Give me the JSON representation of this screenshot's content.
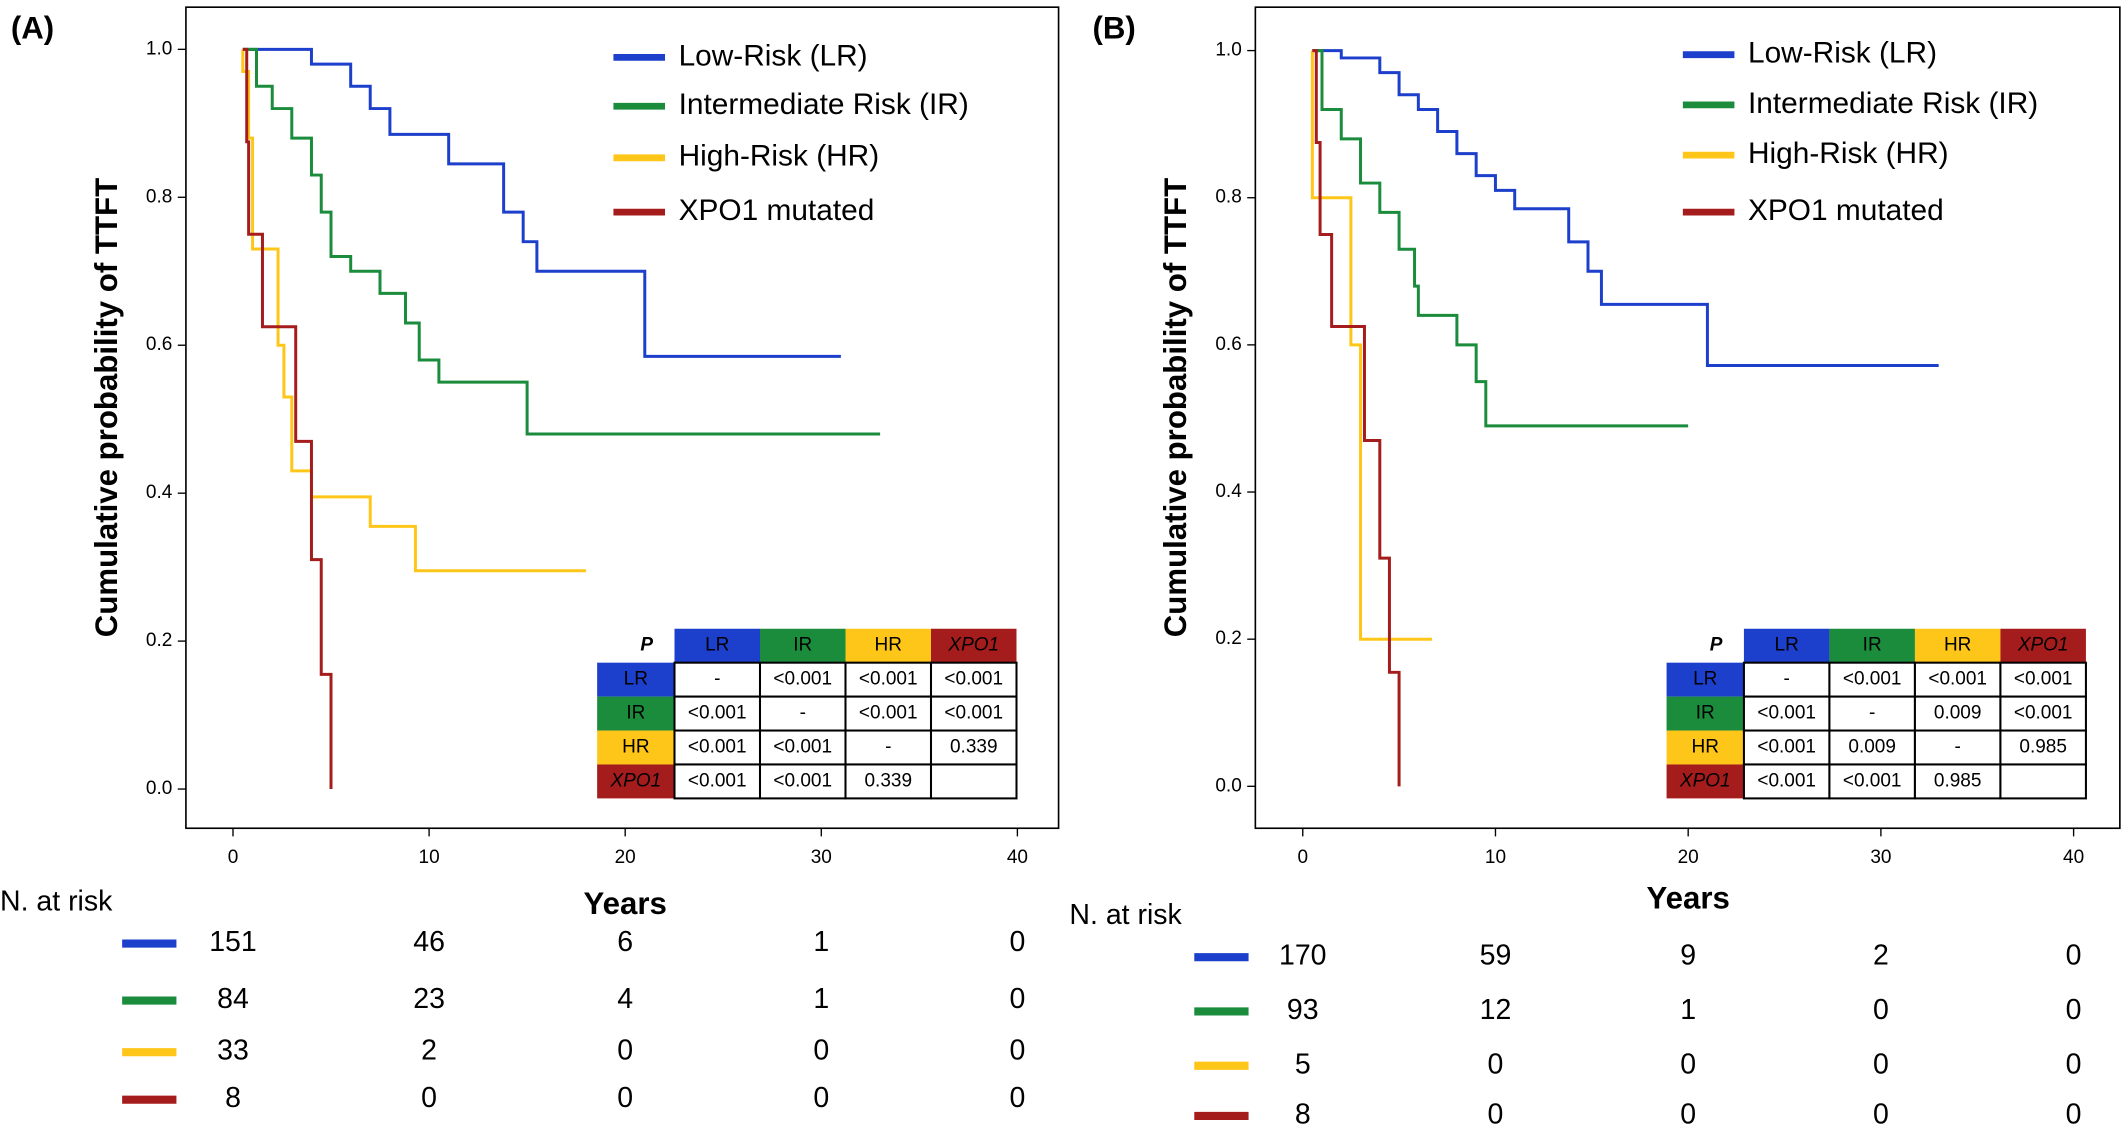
{
  "chart_data": [
    {
      "type": "line",
      "panel": "(A)",
      "ylabel": "Cumulative probability of TTFT",
      "xlabel": "Years",
      "xlim": [
        -2.4,
        42.1
      ],
      "ylim": [
        -0.053,
        1.057
      ],
      "xticks": [
        0,
        10,
        20,
        30,
        40
      ],
      "yticks": [
        {
          "value": 0,
          "label": "0.0"
        },
        {
          "value": 0.2,
          "label": "0.2"
        },
        {
          "value": 0.4,
          "label": "0.4"
        },
        {
          "value": 0.6,
          "label": "0.6"
        },
        {
          "value": 0.8,
          "label": "0.8"
        },
        {
          "value": 1,
          "label": "1.0"
        }
      ],
      "series": [
        {
          "name": "Low-Risk (LR)",
          "color": "#1c3fcc",
          "x": [
            0.5,
            4,
            4,
            6,
            6,
            7,
            7,
            8,
            8,
            11,
            11,
            13.8,
            13.8,
            14.8,
            14.8,
            15.5,
            15.5,
            21,
            21,
            31
          ],
          "y": [
            1,
            1,
            0.98,
            0.98,
            0.95,
            0.95,
            0.92,
            0.92,
            0.885,
            0.885,
            0.845,
            0.845,
            0.78,
            0.78,
            0.74,
            0.74,
            0.7,
            0.7,
            0.585,
            0.585
          ],
          "at_risk": [
            151,
            46,
            6,
            1,
            0
          ]
        },
        {
          "name": "Intermediate Risk (IR)",
          "color": "#1a8c3c",
          "x": [
            0.5,
            1.2,
            1.2,
            2,
            2,
            3,
            3,
            4,
            4,
            4.5,
            4.5,
            5,
            5,
            6,
            6,
            7.5,
            7.5,
            8.8,
            8.8,
            9.5,
            9.5,
            10.5,
            10.5,
            15,
            15,
            33
          ],
          "y": [
            1,
            1,
            0.95,
            0.95,
            0.92,
            0.92,
            0.88,
            0.88,
            0.83,
            0.83,
            0.78,
            0.78,
            0.72,
            0.72,
            0.7,
            0.7,
            0.67,
            0.67,
            0.63,
            0.63,
            0.58,
            0.58,
            0.55,
            0.55,
            0.48,
            0.48
          ],
          "at_risk": [
            84,
            23,
            4,
            1,
            0
          ]
        },
        {
          "name": "High-Risk (HR)",
          "color": "#ffc61a",
          "x": [
            0.5,
            0.5,
            0.8,
            0.8,
            1,
            1,
            2.3,
            2.3,
            2.6,
            2.6,
            3,
            3,
            4,
            4,
            7,
            7,
            9.3,
            9.3,
            18
          ],
          "y": [
            1,
            0.97,
            0.97,
            0.88,
            0.88,
            0.73,
            0.73,
            0.6,
            0.6,
            0.53,
            0.53,
            0.43,
            0.43,
            0.395,
            0.395,
            0.355,
            0.355,
            0.295,
            0.295
          ],
          "at_risk": [
            33,
            2,
            0,
            0,
            0
          ]
        },
        {
          "name": "XPO1 mutated",
          "color": "#a51c1c",
          "x": [
            0.5,
            0.7,
            0.7,
            0.8,
            0.8,
            1.5,
            1.5,
            3.2,
            3.2,
            4,
            4,
            4.5,
            4.5,
            5,
            5
          ],
          "y": [
            1,
            1,
            0.875,
            0.875,
            0.75,
            0.75,
            0.625,
            0.625,
            0.47,
            0.47,
            0.31,
            0.31,
            0.155,
            0.155,
            0
          ],
          "at_risk": [
            8,
            0,
            0,
            0,
            0
          ]
        }
      ],
      "p_table": {
        "corner": "P",
        "labels": [
          "LR",
          "IR",
          "HR",
          "XPO1"
        ],
        "rows": [
          [
            "-",
            "<0.001",
            "<0.001",
            "<0.001"
          ],
          [
            "<0.001",
            "-",
            "<0.001",
            "<0.001"
          ],
          [
            "<0.001",
            "<0.001",
            "-",
            "0.339"
          ],
          [
            "<0.001",
            "<0.001",
            "0.339",
            null
          ]
        ]
      },
      "at_risk_label": "N. at risk"
    },
    {
      "type": "line",
      "panel": "(B)",
      "ylabel": "Cumulative probability of TTFT",
      "xlabel": "Years",
      "xlim": [
        -2.46,
        42.4
      ],
      "ylim": [
        -0.057,
        1.059
      ],
      "xticks": [
        0,
        10,
        20,
        30,
        40
      ],
      "yticks": [
        {
          "value": 0,
          "label": "0.0"
        },
        {
          "value": 0.2,
          "label": "0.2"
        },
        {
          "value": 0.4,
          "label": "0.4"
        },
        {
          "value": 0.6,
          "label": "0.6"
        },
        {
          "value": 0.8,
          "label": "0.8"
        },
        {
          "value": 1,
          "label": "1.0"
        }
      ],
      "series": [
        {
          "name": "Low-Risk (LR)",
          "color": "#1c3fcc",
          "x": [
            0.5,
            2,
            2,
            4,
            4,
            5,
            5,
            6,
            6,
            7,
            7,
            8,
            8,
            9,
            9,
            10,
            10,
            11,
            11,
            13.8,
            13.8,
            14.8,
            14.8,
            15.5,
            15.5,
            21,
            21,
            33
          ],
          "y": [
            1,
            1,
            0.99,
            0.99,
            0.97,
            0.97,
            0.94,
            0.94,
            0.92,
            0.92,
            0.89,
            0.89,
            0.86,
            0.86,
            0.83,
            0.83,
            0.81,
            0.81,
            0.785,
            0.785,
            0.74,
            0.74,
            0.7,
            0.7,
            0.655,
            0.655,
            0.572,
            0.572
          ],
          "at_risk": [
            170,
            59,
            9,
            2,
            0
          ]
        },
        {
          "name": "Intermediate Risk (IR)",
          "color": "#1a8c3c",
          "x": [
            0.5,
            1,
            1,
            2,
            2,
            3,
            3,
            4,
            4,
            5,
            5,
            5.8,
            5.8,
            6,
            6,
            8,
            8,
            9,
            9,
            9.5,
            9.5,
            20
          ],
          "y": [
            1,
            1,
            0.92,
            0.92,
            0.88,
            0.88,
            0.82,
            0.82,
            0.78,
            0.78,
            0.73,
            0.73,
            0.68,
            0.68,
            0.64,
            0.64,
            0.6,
            0.6,
            0.55,
            0.55,
            0.49,
            0.49
          ],
          "at_risk": [
            93,
            12,
            1,
            0,
            0
          ]
        },
        {
          "name": "High-Risk (HR)",
          "color": "#ffc61a",
          "x": [
            0.5,
            0.5,
            2.5,
            2.5,
            3,
            3,
            6.7
          ],
          "y": [
            1,
            0.8,
            0.8,
            0.6,
            0.6,
            0.2,
            0.2
          ],
          "at_risk": [
            5,
            0,
            0,
            0,
            0
          ]
        },
        {
          "name": "XPO1 mutated",
          "color": "#a51c1c",
          "x": [
            0.5,
            0.7,
            0.7,
            0.9,
            0.9,
            1.5,
            1.5,
            3.2,
            3.2,
            4,
            4,
            4.5,
            4.5,
            5,
            5
          ],
          "y": [
            1,
            1,
            0.875,
            0.875,
            0.75,
            0.75,
            0.625,
            0.625,
            0.47,
            0.47,
            0.31,
            0.31,
            0.155,
            0.155,
            0
          ],
          "at_risk": [
            8,
            0,
            0,
            0,
            0
          ]
        }
      ],
      "p_table": {
        "corner": "P",
        "labels": [
          "LR",
          "IR",
          "HR",
          "XPO1"
        ],
        "rows": [
          [
            "-",
            "<0.001",
            "<0.001",
            "<0.001"
          ],
          [
            "<0.001",
            "-",
            "0.009",
            "<0.001"
          ],
          [
            "<0.001",
            "0.009",
            "-",
            "0.985"
          ],
          [
            "<0.001",
            "<0.001",
            "0.985",
            null
          ]
        ]
      },
      "at_risk_label": "N. at risk"
    }
  ]
}
